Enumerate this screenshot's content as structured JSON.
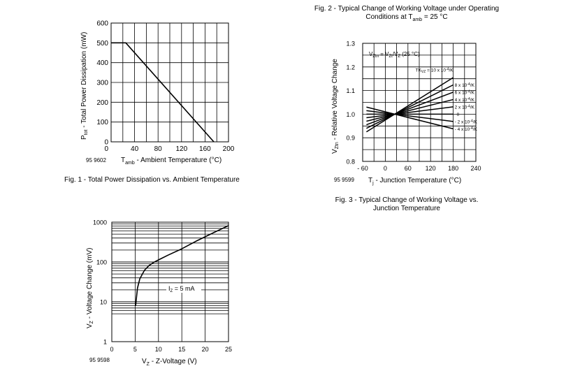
{
  "chart_data": [
    {
      "type": "line",
      "title": "",
      "caption": "Fig. 1 - Total Power Dissipation vs. Ambient Temperature",
      "doc_code": "95 9602",
      "ylabel_main": "P",
      "ylabel_sub": "tot",
      "ylabel_rest": " - Total Power Dissipation (mW)",
      "xlabel_main": "T",
      "xlabel_sub": "amb",
      "xlabel_rest": " - Ambient Temperature (°C)",
      "xlim": [
        0,
        200
      ],
      "ylim": [
        0,
        600
      ],
      "x_ticks": [
        "0",
        "40",
        "80",
        "120",
        "160",
        "200"
      ],
      "y_ticks": [
        "0",
        "100",
        "200",
        "300",
        "400",
        "500",
        "600"
      ],
      "grid": true,
      "series": [
        {
          "x": [
            0,
            25,
            175
          ],
          "y": [
            500,
            500,
            0
          ]
        }
      ]
    },
    {
      "type": "line",
      "title_line1": "Fig. 2 - Typical Change of Working Voltage under Operating",
      "title_line2_main": "Conditions at T",
      "title_line2_sub": "amb",
      "title_line2_rest": " = 25 °C",
      "caption_line1": "Fig. 3 - Typical Change of Working Voltage vs.",
      "caption_line2": "Junction Temperature",
      "doc_code": "95 9599",
      "ylabel_main": "V",
      "ylabel_sub": "Ztn",
      "ylabel_rest": " - Relative Voltage Change",
      "xlabel_main": "T",
      "xlabel_sub": "j",
      "xlabel_rest": " - Junction Temperature (°C)",
      "formula": "V_Ztn = V_Zt/V_Z (25 °C)",
      "formula_parts": [
        "V",
        "Ztn",
        " = V",
        "Zt",
        "/V",
        "Z",
        " (25 °C)"
      ],
      "xlim": [
        -60,
        240
      ],
      "ylim": [
        0.8,
        1.3
      ],
      "x_ticks": [
        "- 60",
        "0",
        "60",
        "120",
        "180",
        "240"
      ],
      "y_ticks": [
        "0.8",
        "0.9",
        "1.0",
        "1.1",
        "1.2",
        "1.3"
      ],
      "grid": true,
      "series": [
        {
          "name": "TKvz = 10 x 10-4/K",
          "label_main": "TK",
          "label_sub": "VZ",
          "label_rest": " = 10 x 10",
          "label_sup": "-4",
          "label_end": "/K",
          "tk": 10
        },
        {
          "name": "8 x 10-4/K",
          "label_main": "8 x 10",
          "label_sup": "-4",
          "label_end": "/K",
          "tk": 8
        },
        {
          "name": "6 x 10-4/K",
          "label_main": "6 x 10",
          "label_sup": "-4",
          "label_end": "/K",
          "tk": 6
        },
        {
          "name": "4 x 10-4/K",
          "label_main": "4 x 10",
          "label_sup": "-4",
          "label_end": "/K",
          "tk": 4
        },
        {
          "name": "2 x 10-4/K",
          "label_main": "2 x 10",
          "label_sup": "-4",
          "label_end": "/K",
          "tk": 2
        },
        {
          "name": "0",
          "label_main": "0",
          "label_sup": "",
          "label_end": "",
          "tk": 0
        },
        {
          "name": "- 2 x 10-4/K",
          "label_main": "- 2 x 10",
          "label_sup": "-4",
          "label_end": "/K",
          "tk": -2
        },
        {
          "name": "- 4 x 10-4/K",
          "label_main": "- 4 x 10",
          "label_sup": "-4",
          "label_end": "/K",
          "tk": -4
        }
      ]
    },
    {
      "type": "line",
      "title": "",
      "doc_code": "95 9598",
      "ylabel_main": "V",
      "ylabel_sub": "Z",
      "ylabel_rest": " - Voltage Change (mV)",
      "xlabel_main": "V",
      "xlabel_sub": "Z",
      "xlabel_rest": " - Z-Voltage (V)",
      "annotation_main": "I",
      "annotation_sub": "Z",
      "annotation_rest": " = 5 mA",
      "yscale": "log",
      "xlim": [
        0,
        25
      ],
      "ylim": [
        1,
        1000
      ],
      "x_ticks": [
        "0",
        "5",
        "10",
        "15",
        "20",
        "25"
      ],
      "y_ticks": [
        "1",
        "10",
        "100",
        "1000"
      ],
      "grid": true,
      "series": [
        {
          "x": [
            5.1,
            5.5,
            6,
            7,
            8,
            9,
            10,
            12,
            15,
            18,
            20,
            22,
            25
          ],
          "y": [
            8,
            22,
            38,
            62,
            82,
            98,
            113,
            148,
            215,
            330,
            430,
            560,
            820
          ]
        }
      ]
    }
  ]
}
